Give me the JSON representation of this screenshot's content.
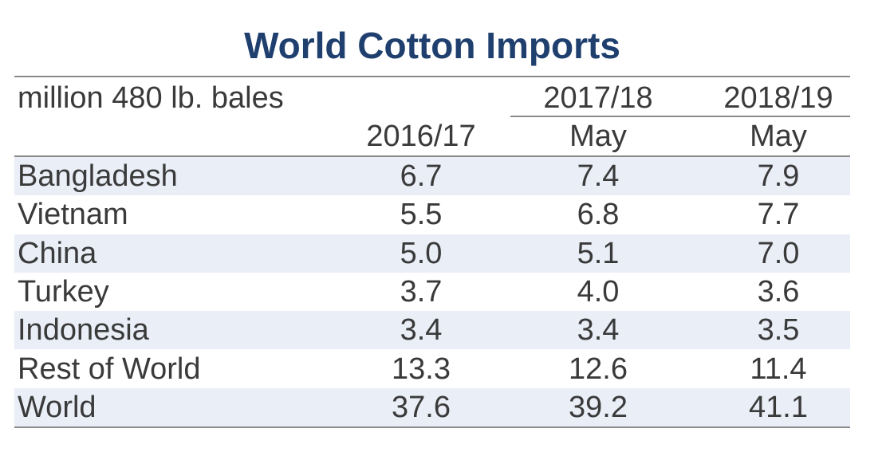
{
  "chart_data": {
    "type": "table",
    "title": "World Cotton Imports",
    "unit_label": "million 480 lb. bales",
    "header_top": [
      "",
      "2017/18",
      "2018/19"
    ],
    "columns": [
      "2016/17",
      "May",
      "May"
    ],
    "rows": [
      {
        "label": "Bangladesh",
        "values": [
          "6.7",
          "7.4",
          "7.9"
        ]
      },
      {
        "label": "Vietnam",
        "values": [
          "5.5",
          "6.8",
          "7.7"
        ]
      },
      {
        "label": "China",
        "values": [
          "5.0",
          "5.1",
          "7.0"
        ]
      },
      {
        "label": "Turkey",
        "values": [
          "3.7",
          "4.0",
          "3.6"
        ]
      },
      {
        "label": "Indonesia",
        "values": [
          "3.4",
          "3.4",
          "3.5"
        ]
      },
      {
        "label": "Rest of World",
        "values": [
          "13.3",
          "12.6",
          "11.4"
        ]
      },
      {
        "label": "World",
        "values": [
          "37.6",
          "39.2",
          "41.1"
        ]
      }
    ]
  },
  "colors": {
    "title": "#1f3f6e",
    "stripe": "#e9eef7",
    "rule": "#8a8a8a"
  }
}
